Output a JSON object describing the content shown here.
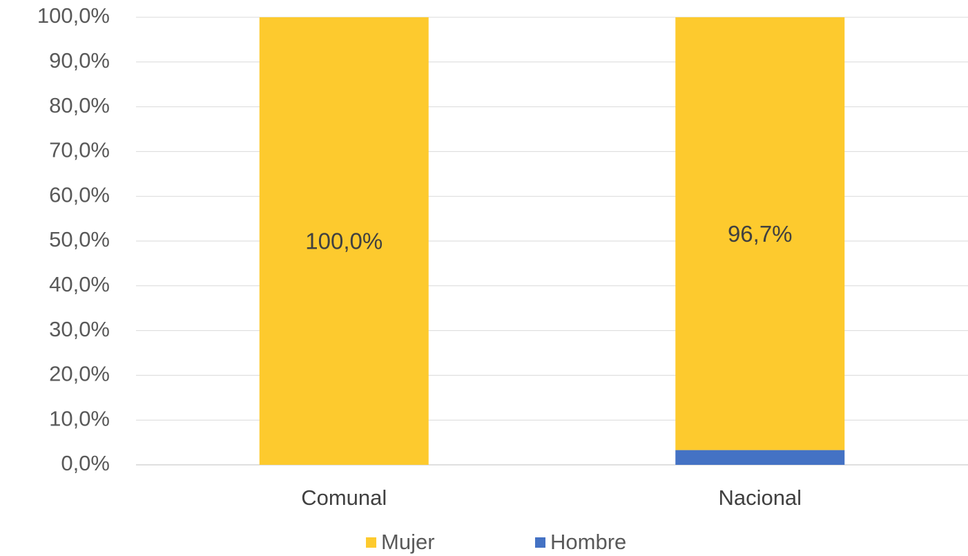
{
  "chart_data": {
    "type": "stacked_bar",
    "categories": [
      "Comunal",
      "Nacional"
    ],
    "series": [
      {
        "name": "Mujer",
        "color": "#fdca2e",
        "values": [
          100,
          96.7
        ],
        "value_labels": [
          "100,0%",
          "96,7%"
        ]
      },
      {
        "name": "Hombre",
        "color": "#4472c4",
        "values": [
          0,
          3.3
        ]
      }
    ],
    "ylim": [
      0,
      100
    ],
    "yticks": [
      {
        "value": 0,
        "label": "0,0%"
      },
      {
        "value": 10,
        "label": "10,0%"
      },
      {
        "value": 20,
        "label": "20,0%"
      },
      {
        "value": 30,
        "label": "30,0%"
      },
      {
        "value": 40,
        "label": "40,0%"
      },
      {
        "value": 50,
        "label": "50,0%"
      },
      {
        "value": 60,
        "label": "60,0%"
      },
      {
        "value": 70,
        "label": "70,0%"
      },
      {
        "value": 80,
        "label": "80,0%"
      },
      {
        "value": 90,
        "label": "90,0%"
      },
      {
        "value": 100,
        "label": "100,0%"
      }
    ],
    "grid": true,
    "legend": "bottom"
  }
}
